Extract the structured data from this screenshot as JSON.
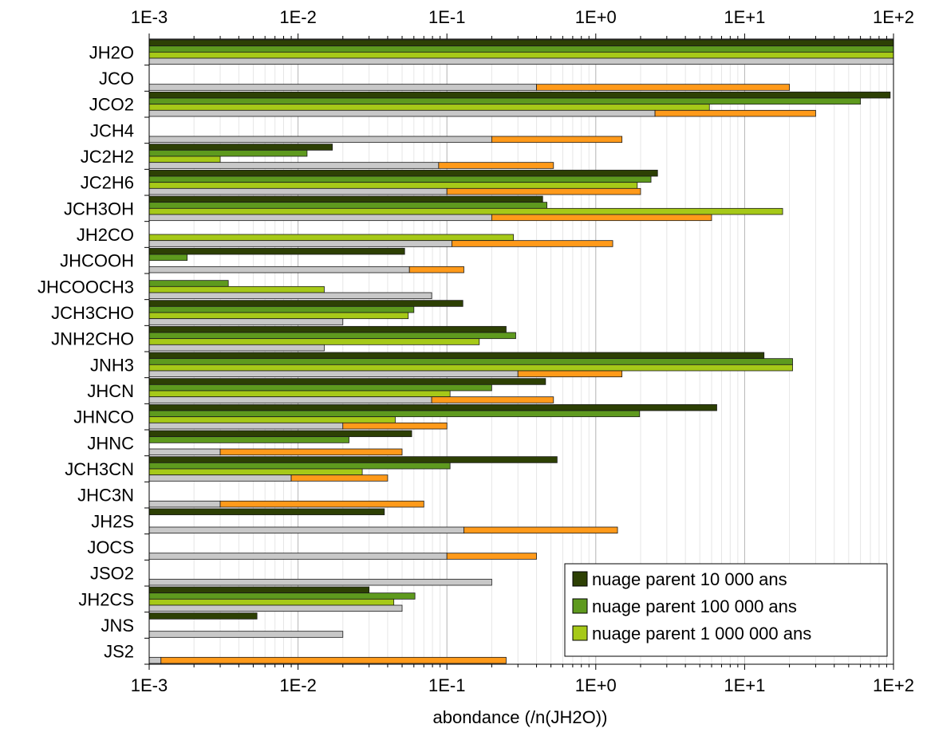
{
  "chart_data": {
    "type": "bar",
    "orientation": "horizontal",
    "x_scale": "log",
    "xlim": [
      0.001,
      100
    ],
    "xlabel": "abondance (/n(JH2O))",
    "ylabel": "",
    "title": "",
    "grid": true,
    "legend_position": "bottom-right",
    "x_tick_labels": [
      "1E-3",
      "1E-2",
      "1E-1",
      "1E+0",
      "1E+1",
      "1E+2"
    ],
    "categories": [
      "JH2O",
      "JCO",
      "JCO2",
      "JCH4",
      "JC2H2",
      "JC2H6",
      "JCH3OH",
      "JH2CO",
      "JHCOOH",
      "JHCOOCH3",
      "JCH3CHO",
      "JNH2CHO",
      "JNH3",
      "JHCN",
      "JHNCO",
      "JHNC",
      "JCH3CN",
      "JHC3N",
      "JH2S",
      "JOCS",
      "JSO2",
      "JH2CS",
      "JNS",
      "JS2"
    ],
    "series": [
      {
        "name": "nuage parent 10 000 ans",
        "color": "#2d4004",
        "values": [
          100,
          null,
          95,
          null,
          0.017,
          2.6,
          0.44,
          null,
          0.052,
          null,
          0.128,
          0.25,
          13.5,
          0.46,
          6.5,
          0.058,
          0.55,
          null,
          0.038,
          null,
          null,
          0.03,
          0.0053,
          null
        ]
      },
      {
        "name": "nuage parent 100 000 ans",
        "color": "#5e9a1e",
        "values": [
          100,
          null,
          60,
          null,
          0.0115,
          2.35,
          0.47,
          null,
          0.0018,
          0.0034,
          0.06,
          0.29,
          21,
          0.2,
          1.97,
          0.022,
          0.105,
          null,
          null,
          null,
          null,
          0.061,
          null,
          null
        ]
      },
      {
        "name": "nuage parent 1 000 000 ans",
        "color": "#a6c918",
        "values": [
          100,
          null,
          5.8,
          null,
          0.003,
          1.9,
          18,
          0.28,
          null,
          0.015,
          0.055,
          0.165,
          21,
          0.105,
          0.045,
          null,
          0.027,
          null,
          null,
          null,
          null,
          0.044,
          null,
          null
        ]
      },
      {
        "name": "",
        "color": "#c8c8c8",
        "values": [
          100,
          0.4,
          2.5,
          0.2,
          0.088,
          0.1,
          0.2,
          0.108,
          0.056,
          0.079,
          0.02,
          0.015,
          0.3,
          0.079,
          0.02,
          0.003,
          0.009,
          0.003,
          0.13,
          0.1,
          0.2,
          0.05,
          0.02,
          0.0012
        ]
      },
      {
        "name": "",
        "color": "#ff9a1a",
        "type": "range",
        "values": [
          null,
          [
            0.4,
            20
          ],
          [
            2.5,
            30
          ],
          [
            0.2,
            1.5
          ],
          [
            0.088,
            0.52
          ],
          [
            0.1,
            2.0
          ],
          [
            0.2,
            6.0
          ],
          [
            0.108,
            1.3
          ],
          [
            0.056,
            0.13
          ],
          null,
          null,
          null,
          [
            0.3,
            1.5
          ],
          [
            0.079,
            0.52
          ],
          [
            0.02,
            0.1
          ],
          [
            0.003,
            0.05
          ],
          [
            0.009,
            0.04
          ],
          [
            0.003,
            0.07
          ],
          [
            0.13,
            1.4
          ],
          [
            0.1,
            0.4
          ],
          null,
          null,
          null,
          [
            0.0012,
            0.25
          ]
        ]
      }
    ]
  }
}
